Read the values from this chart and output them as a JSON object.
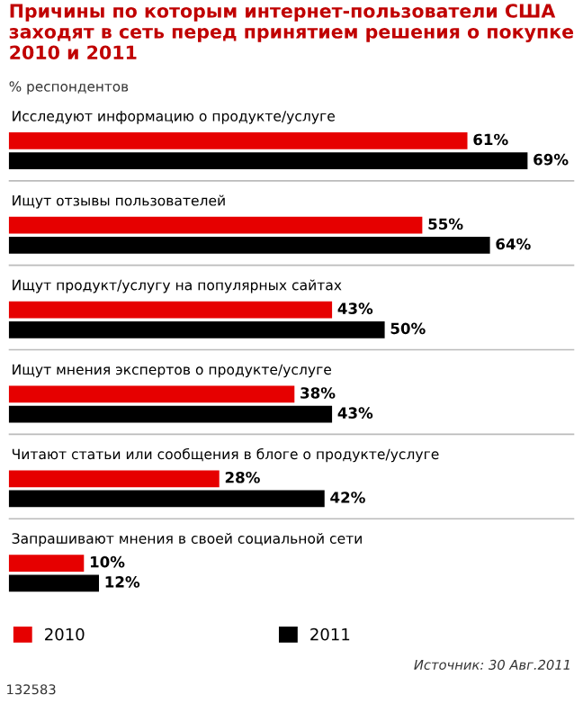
{
  "chart_data": {
    "type": "bar",
    "orientation": "horizontal",
    "title": "Причины по которым интернет-пользователи США заходят в сеть перед принятием решения о покупке 2010 и 2011",
    "subtitle": "% респондентов",
    "categories": [
      "Исследуют информацию о продукте/услуге",
      "Ищут отзывы пользователей",
      "Ищут продукт/услугу на популярных сайтах",
      "Ищут мнения экспертов о продукте/услуге",
      "Читают статьи или сообщения в блоге о продукте/услуге",
      "Запрашивают мнения в своей социальной сети"
    ],
    "series": [
      {
        "name": "2010",
        "color": "#e60000",
        "values": [
          61,
          55,
          43,
          38,
          28,
          10
        ],
        "value_labels": [
          "61%",
          "55%",
          "43%",
          "38%",
          "28%",
          "10%"
        ]
      },
      {
        "name": "2011",
        "color": "#000000",
        "values": [
          69,
          64,
          50,
          43,
          42,
          12
        ],
        "value_labels": [
          "69%",
          "64%",
          "50%",
          "43%",
          "42%",
          "12%"
        ]
      }
    ],
    "legend": "bottom left",
    "annotations": [
      "Источник: 30 Авг.2011",
      "132583"
    ]
  }
}
